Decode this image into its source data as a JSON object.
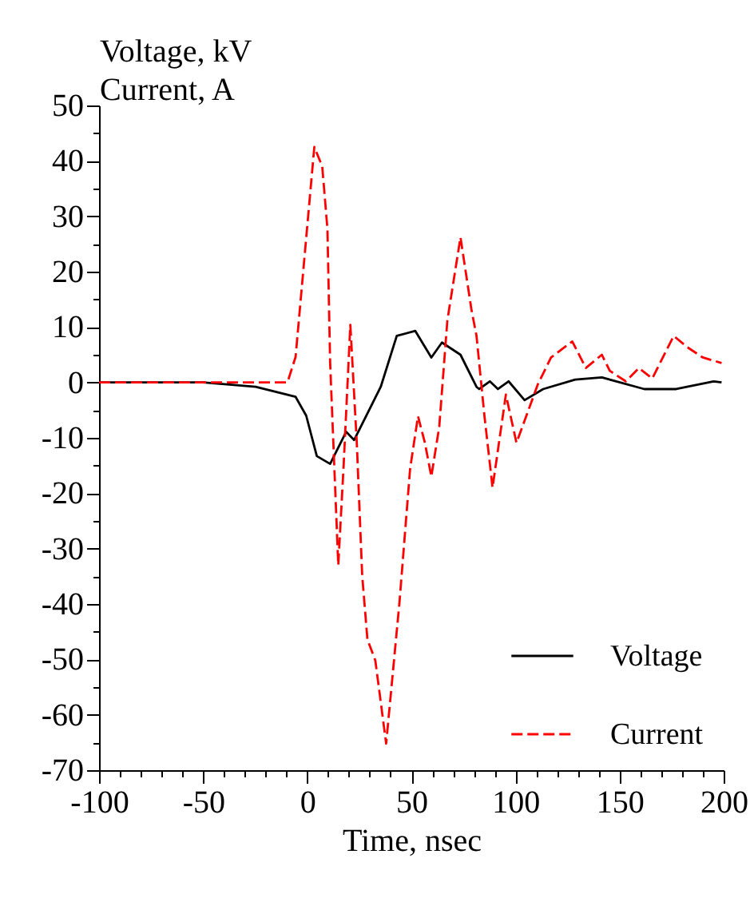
{
  "chart_data": {
    "type": "line",
    "xlabel": "Time, nsec",
    "ylabel": "Voltage, kV\nCurrent, A",
    "xlim": [
      -100,
      200
    ],
    "ylim": [
      -70,
      50
    ],
    "xticks": [
      -100,
      {
        "value": -90,
        "label": null
      },
      {
        "value": -80,
        "label": null
      },
      {
        "value": -70,
        "label": null
      },
      {
        "value": -60,
        "label": null
      },
      -50,
      {
        "value": -40,
        "label": null
      },
      {
        "value": -30,
        "label": null
      },
      {
        "value": -20,
        "label": null
      },
      {
        "value": -10,
        "label": null
      },
      0,
      {
        "value": 10,
        "label": null
      },
      {
        "value": 20,
        "label": null
      },
      {
        "value": 30,
        "label": null
      },
      {
        "value": 40,
        "label": null
      },
      50,
      {
        "value": 60,
        "label": null
      },
      {
        "value": 70,
        "label": null
      },
      {
        "value": 80,
        "label": null
      },
      {
        "value": 90,
        "label": null
      },
      100,
      {
        "value": 110,
        "label": null
      },
      {
        "value": 120,
        "label": null
      },
      {
        "value": 130,
        "label": null
      },
      {
        "value": 140,
        "label": null
      },
      150,
      {
        "value": 160,
        "label": null
      },
      {
        "value": 170,
        "label": null
      },
      {
        "value": 180,
        "label": null
      },
      {
        "value": 190,
        "label": null
      },
      200
    ],
    "yticks": [
      -70,
      {
        "value": -65,
        "label": null
      },
      -60,
      {
        "value": -55,
        "label": null
      },
      -50,
      {
        "value": -45,
        "label": null
      },
      -40,
      {
        "value": -35,
        "label": null
      },
      -30,
      {
        "value": -25,
        "label": null
      },
      -20,
      {
        "value": -15,
        "label": null
      },
      -10,
      {
        "value": -5,
        "label": null
      },
      0,
      {
        "value": 5,
        "label": null
      },
      10,
      {
        "value": 15,
        "label": null
      },
      20,
      {
        "value": 25,
        "label": null
      },
      30,
      {
        "value": 35,
        "label": null
      },
      40,
      {
        "value": 45,
        "label": null
      },
      50
    ],
    "grid": false,
    "legend": "bottom right",
    "marker": "none",
    "series": [
      {
        "name": "Voltage",
        "color": "#000000",
        "line_style": "solid",
        "x": [
          -100,
          -50,
          -24.8,
          -5.6,
          -0.5,
          4.6,
          11,
          18.7,
          22.5,
          35.3,
          43,
          51.9,
          59.6,
          64.7,
          73.6,
          81.3,
          82.6,
          87.7,
          91.6,
          96.7,
          104.4,
          113.3,
          128.7,
          141.5,
          161.9,
          177.2,
          195.2,
          199
        ],
        "values": [
          0,
          0,
          -0.8,
          -2.6,
          -6,
          -13.3,
          -14.7,
          -8.9,
          -10.4,
          -0.8,
          8.4,
          9.3,
          4.5,
          7.2,
          5,
          -0.8,
          -1.2,
          0.2,
          -1.2,
          0.2,
          -3.2,
          -1.2,
          0.5,
          0.9,
          -1.2,
          -1.2,
          0.2,
          0
        ]
      },
      {
        "name": "Current",
        "color": "#ff0000",
        "line_style": "dashed",
        "x": [
          -100,
          -50,
          -9.5,
          -5.6,
          3.4,
          7.2,
          9.7,
          11,
          14.9,
          17.4,
          20.7,
          23.8,
          26.4,
          28.9,
          32.7,
          37.9,
          44.3,
          49.4,
          53.2,
          56.5,
          59.6,
          63.4,
          67.3,
          73.6,
          78.8,
          81.3,
          85.1,
          89,
          95.4,
          100.5,
          110.8,
          117.1,
          127.3,
          133.8,
          141.5,
          145.3,
          153,
          159.3,
          165.7,
          176,
          182.4,
          190,
          199
        ],
        "values": [
          0,
          0,
          0,
          4.6,
          42.5,
          39,
          27.7,
          3.5,
          -33,
          -15.6,
          10.4,
          -10.9,
          -34.9,
          -46.4,
          -50.2,
          -65.2,
          -39.7,
          -15.6,
          -6.1,
          -10.9,
          -17,
          -8,
          11.2,
          26.2,
          13.3,
          8.4,
          -6,
          -19,
          -2.2,
          -10.9,
          -0.3,
          4.5,
          7.4,
          2.6,
          5,
          2.1,
          0.2,
          2.6,
          0.7,
          8.4,
          6.4,
          4.5,
          3.5
        ]
      }
    ]
  }
}
